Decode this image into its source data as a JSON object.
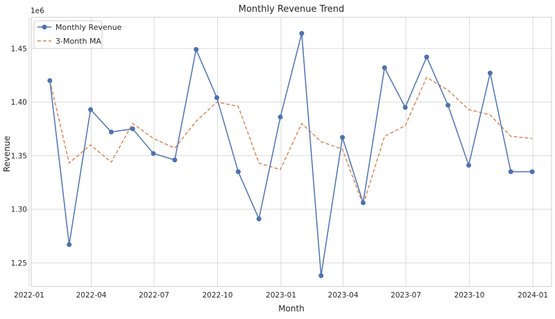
{
  "chart_data": {
    "type": "line",
    "title": "Monthly Revenue Trend",
    "xlabel": "Month",
    "ylabel": "Revenue",
    "y_offset_label": "1e6",
    "y_multiplier": 1000000,
    "xlim": [
      "2022-01-04",
      "2024-01-28"
    ],
    "ylim": [
      1.228,
      1.479
    ],
    "x_ticks": [
      {
        "date": "2022-01-01",
        "label": "2022-01"
      },
      {
        "date": "2022-04-01",
        "label": "2022-04"
      },
      {
        "date": "2022-07-01",
        "label": "2022-07"
      },
      {
        "date": "2022-10-01",
        "label": "2022-10"
      },
      {
        "date": "2023-01-01",
        "label": "2023-01"
      },
      {
        "date": "2023-04-01",
        "label": "2023-04"
      },
      {
        "date": "2023-07-01",
        "label": "2023-07"
      },
      {
        "date": "2023-10-01",
        "label": "2023-10"
      },
      {
        "date": "2024-01-01",
        "label": "2024-01"
      }
    ],
    "y_ticks": [
      {
        "value": 1.25,
        "label": "1.25"
      },
      {
        "value": 1.3,
        "label": "1.30"
      },
      {
        "value": 1.35,
        "label": "1.35"
      },
      {
        "value": 1.4,
        "label": "1.40"
      },
      {
        "value": 1.45,
        "label": "1.45"
      }
    ],
    "grid": true,
    "legend_position": "top-left",
    "x": [
      "2022-01-31",
      "2022-02-28",
      "2022-03-31",
      "2022-04-30",
      "2022-05-31",
      "2022-06-30",
      "2022-07-31",
      "2022-08-31",
      "2022-09-30",
      "2022-10-31",
      "2022-11-30",
      "2022-12-31",
      "2023-01-31",
      "2023-02-28",
      "2023-03-31",
      "2023-04-30",
      "2023-05-31",
      "2023-06-30",
      "2023-07-31",
      "2023-08-31",
      "2023-09-30",
      "2023-10-31",
      "2023-11-30",
      "2023-12-31"
    ],
    "series": [
      {
        "name": "Monthly Revenue",
        "color": "#4c72b0",
        "style": "solid",
        "marker": "circle",
        "values": [
          1.42,
          1.267,
          1.393,
          1.372,
          1.375,
          1.352,
          1.346,
          1.449,
          1.404,
          1.335,
          1.291,
          1.386,
          1.464,
          1.238,
          1.367,
          1.306,
          1.432,
          1.395,
          1.442,
          1.397,
          1.341,
          1.427,
          1.335,
          1.335
        ]
      },
      {
        "name": "3-Month MA",
        "color": "#dd8452",
        "style": "dashed",
        "marker": "none",
        "values": [
          1.42,
          1.343,
          1.36,
          1.344,
          1.38,
          1.366,
          1.357,
          1.382,
          1.4,
          1.396,
          1.343,
          1.337,
          1.38,
          1.363,
          1.356,
          1.304,
          1.368,
          1.378,
          1.423,
          1.411,
          1.393,
          1.388,
          1.368,
          1.366
        ]
      }
    ]
  }
}
